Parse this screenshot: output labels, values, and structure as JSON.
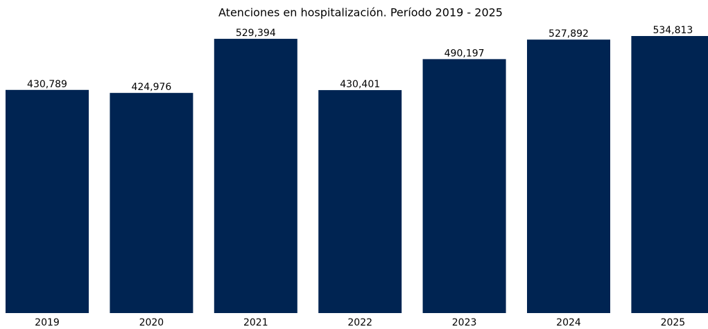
{
  "chart_data": {
    "type": "bar",
    "title": "Atenciones en hospitalización. Período 2019 - 2025",
    "categories": [
      "2019",
      "2020",
      "2021",
      "2022",
      "2023",
      "2024",
      "2025"
    ],
    "values": [
      430789,
      424976,
      529394,
      430401,
      490197,
      527892,
      534813
    ],
    "value_labels": [
      "430,789",
      "424,976",
      "529,394",
      "430,401",
      "490,197",
      "527,892",
      "534,813"
    ],
    "color": "#002452"
  }
}
